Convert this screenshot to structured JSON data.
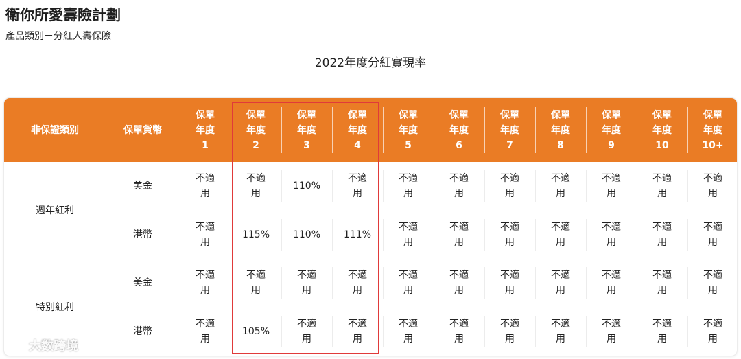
{
  "header": {
    "title": "衛你所愛壽險計劃",
    "subtitle": "產品類別－分紅人壽保險"
  },
  "table": {
    "title": "2022年度分紅實現率",
    "colors": {
      "header_bg": "#ea7c25",
      "highlight": "#e03a3a"
    },
    "headers": {
      "category": "非保證類别",
      "currency": "保單貨幣",
      "years": [
        "保單\n年度\n1",
        "保單\n年度\n2",
        "保單\n年度\n3",
        "保單\n年度\n4",
        "保單\n年度\n5",
        "保單\n年度\n6",
        "保單\n年度\n7",
        "保單\n年度\n8",
        "保單\n年度\n9",
        "保單\n年度\n10",
        "保單\n年度\n10+"
      ]
    },
    "groups": [
      {
        "category": "週年紅利",
        "rows": [
          {
            "currency": "美金",
            "values": [
              "不適\n用",
              "不適\n用",
              "110%",
              "不適\n用",
              "不適\n用",
              "不適\n用",
              "不適\n用",
              "不適\n用",
              "不適\n用",
              "不適\n用",
              "不適\n用"
            ]
          },
          {
            "currency": "港幣",
            "values": [
              "不適\n用",
              "115%",
              "110%",
              "111%",
              "不適\n用",
              "不適\n用",
              "不適\n用",
              "不適\n用",
              "不適\n用",
              "不適\n用",
              "不適\n用"
            ]
          }
        ]
      },
      {
        "category": "特別紅利",
        "rows": [
          {
            "currency": "美金",
            "values": [
              "不適\n用",
              "不適\n用",
              "不適\n用",
              "不適\n用",
              "不適\n用",
              "不適\n用",
              "不適\n用",
              "不適\n用",
              "不適\n用",
              "不適\n用",
              "不適\n用"
            ]
          },
          {
            "currency": "港幣",
            "values": [
              "不適\n用",
              "105%",
              "不適\n用",
              "不適\n用",
              "不適\n用",
              "不適\n用",
              "不適\n用",
              "不適\n用",
              "不適\n用",
              "不適\n用",
              "不適\n用"
            ]
          }
        ]
      }
    ]
  },
  "watermark": {
    "text": "大数跨境"
  }
}
